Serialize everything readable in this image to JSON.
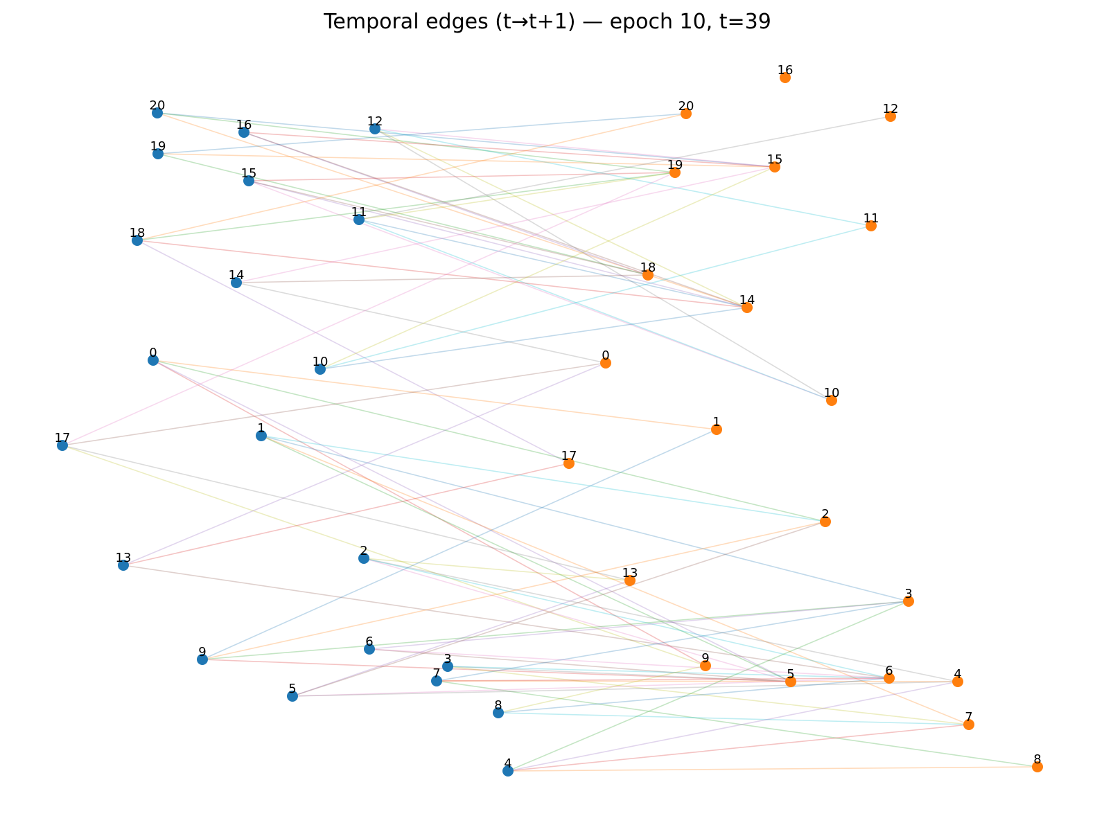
{
  "title": "Temporal edges (t→t+1) — epoch 10, t=39",
  "colors": {
    "source_node": "#1f77b4",
    "target_node": "#ff7f0e",
    "edge_palette": [
      "#1f77b4",
      "#ff7f0e",
      "#2ca02c",
      "#d62728",
      "#9467bd",
      "#8c564b",
      "#e377c2",
      "#7f7f7f",
      "#bcbd22",
      "#17becf"
    ]
  },
  "source_nodes": [
    {
      "id": 0,
      "label": "0"
    },
    {
      "id": 1,
      "label": "1"
    },
    {
      "id": 2,
      "label": "2"
    },
    {
      "id": 3,
      "label": "3"
    },
    {
      "id": 4,
      "label": "4"
    },
    {
      "id": 5,
      "label": "5"
    },
    {
      "id": 6,
      "label": "6"
    },
    {
      "id": 7,
      "label": "7"
    },
    {
      "id": 8,
      "label": "8"
    },
    {
      "id": 9,
      "label": "9"
    },
    {
      "id": 10,
      "label": "10"
    },
    {
      "id": 11,
      "label": "11"
    },
    {
      "id": 12,
      "label": "12"
    },
    {
      "id": 13,
      "label": "13"
    },
    {
      "id": 14,
      "label": "14"
    },
    {
      "id": 15,
      "label": "15"
    },
    {
      "id": 16,
      "label": "16"
    },
    {
      "id": 17,
      "label": "17"
    },
    {
      "id": 18,
      "label": "18"
    },
    {
      "id": 19,
      "label": "19"
    },
    {
      "id": 20,
      "label": "20"
    }
  ],
  "target_nodes": [
    {
      "id": 0,
      "label": "0"
    },
    {
      "id": 1,
      "label": "1"
    },
    {
      "id": 2,
      "label": "2"
    },
    {
      "id": 3,
      "label": "3"
    },
    {
      "id": 4,
      "label": "4"
    },
    {
      "id": 5,
      "label": "5"
    },
    {
      "id": 6,
      "label": "6"
    },
    {
      "id": 7,
      "label": "7"
    },
    {
      "id": 8,
      "label": "8"
    },
    {
      "id": 9,
      "label": "9"
    },
    {
      "id": 10,
      "label": "10"
    },
    {
      "id": 11,
      "label": "11"
    },
    {
      "id": 12,
      "label": "12"
    },
    {
      "id": 13,
      "label": "13"
    },
    {
      "id": 14,
      "label": "14"
    },
    {
      "id": 15,
      "label": "15"
    },
    {
      "id": 16,
      "label": "16"
    },
    {
      "id": 17,
      "label": "17"
    },
    {
      "id": 18,
      "label": "18"
    },
    {
      "id": 19,
      "label": "19"
    },
    {
      "id": 20,
      "label": "20"
    }
  ],
  "edges": [
    {
      "from": 20,
      "to": 15
    },
    {
      "from": 20,
      "to": 14
    },
    {
      "from": 20,
      "to": 19
    },
    {
      "from": 16,
      "to": 15
    },
    {
      "from": 16,
      "to": 18
    },
    {
      "from": 16,
      "to": 14
    },
    {
      "from": 12,
      "to": 15
    },
    {
      "from": 12,
      "to": 10
    },
    {
      "from": 12,
      "to": 14
    },
    {
      "from": 12,
      "to": 11
    },
    {
      "from": 19,
      "to": 20
    },
    {
      "from": 19,
      "to": 15
    },
    {
      "from": 19,
      "to": 18
    },
    {
      "from": 15,
      "to": 19
    },
    {
      "from": 15,
      "to": 14
    },
    {
      "from": 15,
      "to": 18
    },
    {
      "from": 15,
      "to": 10
    },
    {
      "from": 11,
      "to": 12
    },
    {
      "from": 11,
      "to": 19
    },
    {
      "from": 11,
      "to": 10
    },
    {
      "from": 11,
      "to": 14
    },
    {
      "from": 18,
      "to": 20
    },
    {
      "from": 18,
      "to": 19
    },
    {
      "from": 18,
      "to": 14
    },
    {
      "from": 18,
      "to": 17
    },
    {
      "from": 14,
      "to": 18
    },
    {
      "from": 14,
      "to": 15
    },
    {
      "from": 14,
      "to": 0
    },
    {
      "from": 10,
      "to": 15
    },
    {
      "from": 10,
      "to": 11
    },
    {
      "from": 10,
      "to": 14
    },
    {
      "from": 0,
      "to": 1
    },
    {
      "from": 0,
      "to": 2
    },
    {
      "from": 0,
      "to": 9
    },
    {
      "from": 0,
      "to": 5
    },
    {
      "from": 17,
      "to": 0
    },
    {
      "from": 17,
      "to": 19
    },
    {
      "from": 17,
      "to": 13
    },
    {
      "from": 17,
      "to": 9
    },
    {
      "from": 1,
      "to": 2
    },
    {
      "from": 1,
      "to": 3
    },
    {
      "from": 1,
      "to": 7
    },
    {
      "from": 1,
      "to": 5
    },
    {
      "from": 13,
      "to": 17
    },
    {
      "from": 13,
      "to": 0
    },
    {
      "from": 13,
      "to": 6
    },
    {
      "from": 2,
      "to": 5
    },
    {
      "from": 2,
      "to": 4
    },
    {
      "from": 2,
      "to": 13
    },
    {
      "from": 2,
      "to": 6
    },
    {
      "from": 9,
      "to": 1
    },
    {
      "from": 9,
      "to": 2
    },
    {
      "from": 9,
      "to": 3
    },
    {
      "from": 9,
      "to": 5
    },
    {
      "from": 6,
      "to": 3
    },
    {
      "from": 6,
      "to": 5
    },
    {
      "from": 6,
      "to": 6
    },
    {
      "from": 3,
      "to": 5
    },
    {
      "from": 3,
      "to": 7
    },
    {
      "from": 3,
      "to": 6
    },
    {
      "from": 7,
      "to": 3
    },
    {
      "from": 7,
      "to": 4
    },
    {
      "from": 7,
      "to": 8
    },
    {
      "from": 7,
      "to": 6
    },
    {
      "from": 5,
      "to": 13
    },
    {
      "from": 5,
      "to": 2
    },
    {
      "from": 5,
      "to": 6
    },
    {
      "from": 5,
      "to": 4
    },
    {
      "from": 8,
      "to": 9
    },
    {
      "from": 8,
      "to": 7
    },
    {
      "from": 8,
      "to": 6
    },
    {
      "from": 4,
      "to": 8
    },
    {
      "from": 4,
      "to": 3
    },
    {
      "from": 4,
      "to": 7
    },
    {
      "from": 4,
      "to": 4
    }
  ]
}
